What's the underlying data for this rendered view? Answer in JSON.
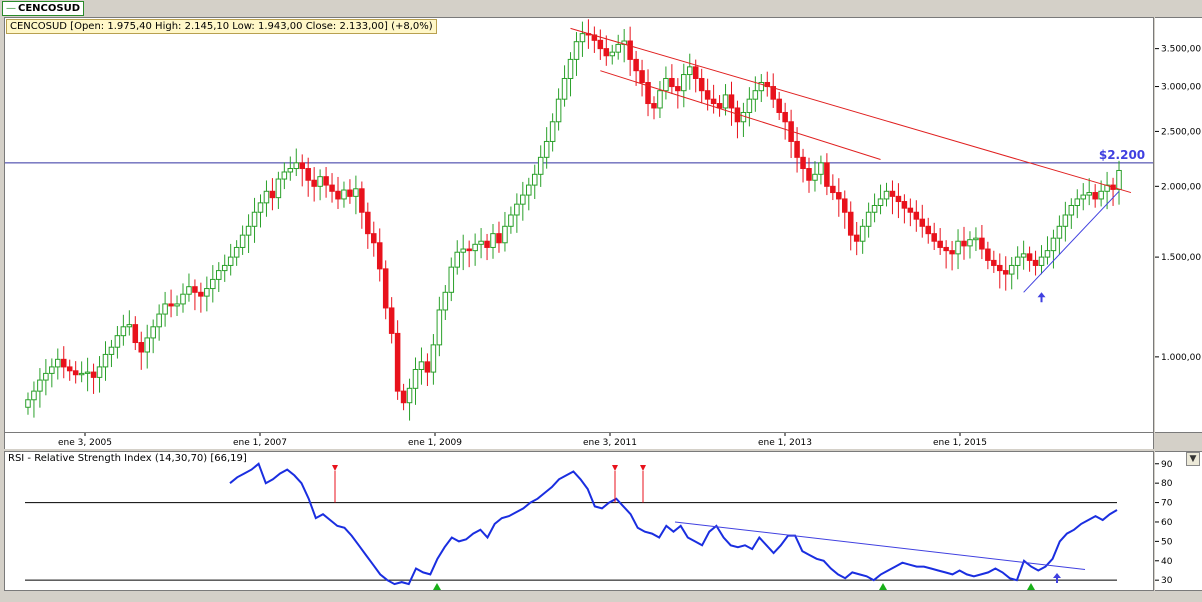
{
  "symbol": "CENCOSUD",
  "ohlc_label": "CENCOSUD [Open: 1.975,40  High: 2.145,10  Low: 1.943,00  Close: 2.133,00] (+8,0%)",
  "rsi_label": "RSI - Relative Strength Index (14,30,70) [66,19]",
  "price_annotation": "$2.200",
  "colors": {
    "up": "#2aa02a",
    "down": "#e8121c",
    "trend_red": "#e02020",
    "trend_blue": "#4040e0",
    "rsi_line": "#1a2ee0",
    "hline": "#3030a0"
  },
  "chart_data": [
    {
      "type": "candlestick",
      "title": "CENCOSUD",
      "scale": "log",
      "ylim": [
        780,
        3900
      ],
      "y_ticks": [
        "1.000,00",
        "1.500,00",
        "2.000,00",
        "2.500,00",
        "3.000,00",
        "3.500,00"
      ],
      "y_tick_values": [
        1000,
        1500,
        2000,
        2500,
        3000,
        3500
      ],
      "x_ticks": [
        "ene 3, 2005",
        "ene 1, 2007",
        "ene 1, 2009",
        "ene 3, 2011",
        "ene 1, 2013",
        "ene 1, 2015"
      ],
      "horizontal_line": 2200,
      "close_series": [
        840,
        870,
        910,
        935,
        960,
        990,
        960,
        945,
        930,
        935,
        940,
        920,
        960,
        1010,
        1040,
        1090,
        1130,
        1140,
        1060,
        1020,
        1080,
        1130,
        1190,
        1240,
        1230,
        1240,
        1290,
        1330,
        1300,
        1280,
        1320,
        1370,
        1420,
        1450,
        1500,
        1560,
        1640,
        1700,
        1800,
        1870,
        1960,
        1910,
        2060,
        2120,
        2150,
        2200,
        2150,
        2050,
        2000,
        2080,
        2010,
        1960,
        1900,
        1970,
        1920,
        1980,
        1800,
        1650,
        1590,
        1430,
        1220,
        1100,
        870,
        830,
        880,
        950,
        980,
        940,
        1050,
        1210,
        1300,
        1440,
        1530,
        1550,
        1540,
        1580,
        1600,
        1560,
        1650,
        1590,
        1700,
        1780,
        1860,
        1930,
        2010,
        2100,
        2250,
        2400,
        2600,
        2850,
        3100,
        3350,
        3600,
        3720,
        3700,
        3620,
        3500,
        3400,
        3450,
        3560,
        3610,
        3350,
        3200,
        3050,
        2800,
        2750,
        2950,
        3100,
        3000,
        2950,
        3150,
        3250,
        3100,
        2950,
        2850,
        2800,
        2750,
        2900,
        2750,
        2600,
        2700,
        2850,
        2950,
        3050,
        3000,
        2850,
        2700,
        2600,
        2400,
        2250,
        2150,
        2050,
        2100,
        2200,
        2000,
        1950,
        1900,
        1800,
        1640,
        1600,
        1700,
        1800,
        1850,
        1900,
        1960,
        1920,
        1880,
        1830,
        1800,
        1750,
        1700,
        1650,
        1600,
        1560,
        1540,
        1520,
        1600,
        1570,
        1610,
        1620,
        1550,
        1480,
        1450,
        1420,
        1400,
        1450,
        1500,
        1520,
        1480,
        1450,
        1500,
        1540,
        1620,
        1700,
        1780,
        1850,
        1900,
        1930,
        1950,
        1900,
        1960,
        2010,
        1975,
        2133
      ],
      "annotation": "$2.200",
      "trendlines": 3
    },
    {
      "type": "line",
      "title": "RSI - Relative Strength Index (14,30,70) [66,19]",
      "ylim": [
        27,
        94
      ],
      "y_ticks": [
        "30",
        "40",
        "50",
        "60",
        "70",
        "80",
        "90"
      ],
      "y_tick_values": [
        30,
        40,
        50,
        60,
        70,
        80,
        90
      ],
      "hlines": [
        30,
        70
      ],
      "last_value": 66.19,
      "values": [
        80,
        83,
        85,
        87,
        90,
        80,
        82,
        85,
        87,
        84,
        80,
        72,
        62,
        64,
        61,
        58,
        57,
        53,
        48,
        43,
        38,
        33,
        30,
        28,
        29,
        28,
        36,
        34,
        33,
        41,
        47,
        52,
        50,
        51,
        54,
        56,
        52,
        59,
        62,
        63,
        65,
        67,
        70,
        72,
        75,
        78,
        82,
        84,
        86,
        82,
        77,
        68,
        67,
        70,
        72,
        68,
        64,
        57,
        55,
        54,
        52,
        58,
        55,
        58,
        52,
        50,
        48,
        55,
        58,
        52,
        48,
        47,
        48,
        46,
        52,
        48,
        44,
        48,
        53,
        53,
        45,
        43,
        41,
        40,
        36,
        33,
        31,
        34,
        33,
        32,
        30,
        33,
        35,
        37,
        39,
        38,
        37,
        37,
        36,
        35,
        34,
        33,
        35,
        33,
        32,
        33,
        34,
        36,
        34,
        31,
        30,
        40,
        37,
        35,
        37,
        41,
        50,
        54,
        56,
        59,
        61,
        63,
        61,
        64,
        66.19
      ],
      "signals_down": 4,
      "signals_up": 3
    }
  ]
}
